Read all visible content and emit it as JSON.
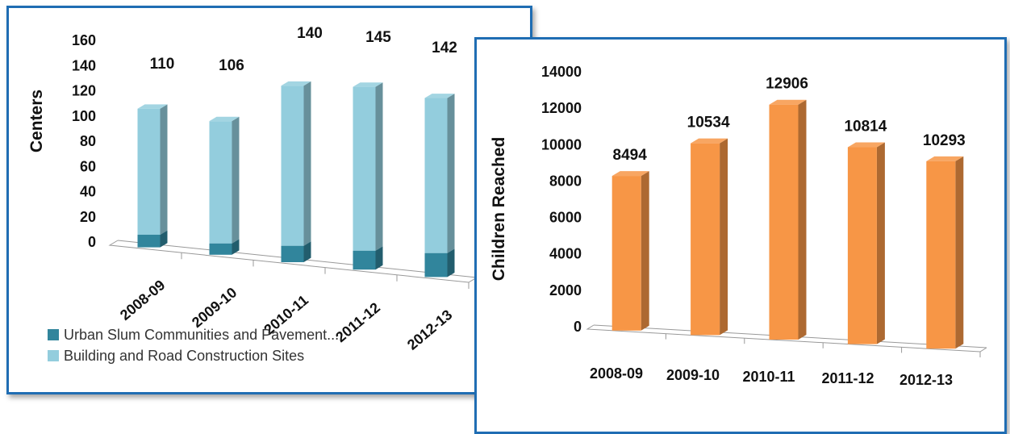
{
  "chart_data": [
    {
      "type": "bar",
      "stacked": true,
      "three_d": true,
      "categories": [
        "2008-09",
        "2009-10",
        "2010-11",
        "2011-12",
        "2012-13"
      ],
      "series": [
        {
          "name": "Urban Slum Communities and Pavement...",
          "values": [
            10,
            9,
            13,
            15,
            19
          ],
          "color": "#31859c"
        },
        {
          "name": "Building and Road Construction Sites",
          "values": [
            100,
            97,
            127,
            130,
            123
          ],
          "color": "#93cddd"
        }
      ],
      "data_labels": [
        "110",
        "106",
        "140",
        "145",
        "142"
      ],
      "ylabel": "Centers",
      "ylim": [
        0,
        160
      ],
      "yticks": [
        "0",
        "20",
        "40",
        "60",
        "80",
        "100",
        "120",
        "140",
        "160"
      ],
      "legend_position": "bottom-left",
      "grid": false
    },
    {
      "type": "bar",
      "three_d": true,
      "categories": [
        "2008-09",
        "2009-10",
        "2010-11",
        "2011-12",
        "2012-13"
      ],
      "series": [
        {
          "values": [
            8494,
            10534,
            12906,
            10814,
            10293
          ],
          "color": "#f79646"
        }
      ],
      "data_labels": [
        "8494",
        "10534",
        "12906",
        "10814",
        "10293"
      ],
      "ylabel": "Children Reached",
      "ylim": [
        0,
        14000
      ],
      "yticks": [
        "0",
        "2000",
        "4000",
        "6000",
        "8000",
        "10000",
        "12000",
        "14000"
      ],
      "grid": false
    }
  ]
}
